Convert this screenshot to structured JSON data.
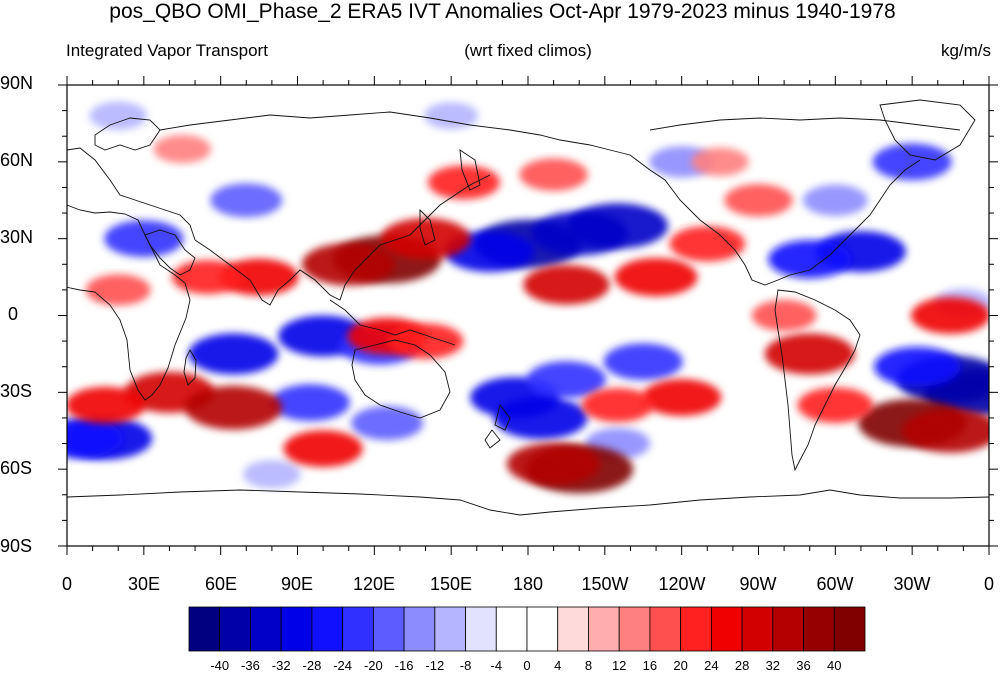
{
  "header": {
    "title": "pos_QBO OMI_Phase_2 ERA5 IVT Anomalies Oct-Apr 1979-2023 minus 1940-1978",
    "left": "Integrated Vapor Transport",
    "center": "(wrt fixed climos)",
    "right": "kg/m/s"
  },
  "axes": {
    "lat_labels": [
      "90N",
      "60N",
      "30N",
      "0",
      "30S",
      "60S",
      "90S"
    ],
    "lon_labels": [
      "0",
      "30E",
      "60E",
      "90E",
      "120E",
      "150E",
      "180",
      "150W",
      "120W",
      "90W",
      "60W",
      "30W",
      "0"
    ]
  },
  "colorbar": {
    "ticks": [
      "-40",
      "-36",
      "-32",
      "-28",
      "-24",
      "-20",
      "-16",
      "-12",
      "-8",
      "-4",
      "0",
      "4",
      "8",
      "12",
      "16",
      "20",
      "24",
      "28",
      "32",
      "36",
      "40"
    ],
    "colors": [
      "#000080",
      "#0000a8",
      "#0000c8",
      "#0000e8",
      "#1010ff",
      "#3030ff",
      "#5c5cff",
      "#8c8cff",
      "#b4b4ff",
      "#e2e2ff",
      "#ffffff",
      "#ffffff",
      "#ffdada",
      "#ffadad",
      "#ff8080",
      "#ff5050",
      "#ff2020",
      "#f00000",
      "#d20000",
      "#b40000",
      "#960000",
      "#800000"
    ]
  },
  "map": {
    "projection": "cylindrical-equidistant",
    "lon_range": [
      0,
      360
    ],
    "lat_range": [
      -90,
      90
    ],
    "anomalies": [
      {
        "lon": 180,
        "lat": 28,
        "v": -40
      },
      {
        "lon": 215,
        "lat": 35,
        "v": -36
      },
      {
        "lon": 200,
        "lat": 32,
        "v": -34
      },
      {
        "lon": 165,
        "lat": 25,
        "v": -30
      },
      {
        "lon": 65,
        "lat": -15,
        "v": -30
      },
      {
        "lon": 100,
        "lat": -8,
        "v": -30
      },
      {
        "lon": 122,
        "lat": -12,
        "v": -24
      },
      {
        "lon": 345,
        "lat": -25,
        "v": -40
      },
      {
        "lon": 355,
        "lat": -30,
        "v": -38
      },
      {
        "lon": 332,
        "lat": -20,
        "v": -28
      },
      {
        "lon": 15,
        "lat": -48,
        "v": -32
      },
      {
        "lon": 5,
        "lat": -48,
        "v": -28
      },
      {
        "lon": 95,
        "lat": -34,
        "v": -24
      },
      {
        "lon": 125,
        "lat": -42,
        "v": -20
      },
      {
        "lon": 175,
        "lat": -32,
        "v": -30
      },
      {
        "lon": 185,
        "lat": -40,
        "v": -32
      },
      {
        "lon": 195,
        "lat": -25,
        "v": -24
      },
      {
        "lon": 225,
        "lat": -18,
        "v": -24
      },
      {
        "lon": 30,
        "lat": 30,
        "v": -24
      },
      {
        "lon": 70,
        "lat": 45,
        "v": -20
      },
      {
        "lon": 310,
        "lat": 25,
        "v": -30
      },
      {
        "lon": 290,
        "lat": 22,
        "v": -26
      },
      {
        "lon": 330,
        "lat": 60,
        "v": -24
      },
      {
        "lon": 300,
        "lat": 45,
        "v": -16
      },
      {
        "lon": 240,
        "lat": 60,
        "v": -16
      },
      {
        "lon": 20,
        "lat": 78,
        "v": -12
      },
      {
        "lon": 150,
        "lat": 78,
        "v": -10
      },
      {
        "lon": 215,
        "lat": -50,
        "v": -16
      },
      {
        "lon": 80,
        "lat": -62,
        "v": -12
      },
      {
        "lon": 350,
        "lat": 5,
        "v": -12
      },
      {
        "lon": 125,
        "lat": 22,
        "v": 40
      },
      {
        "lon": 110,
        "lat": 20,
        "v": 32
      },
      {
        "lon": 140,
        "lat": 30,
        "v": 30
      },
      {
        "lon": 75,
        "lat": 15,
        "v": 24
      },
      {
        "lon": 55,
        "lat": 15,
        "v": 20
      },
      {
        "lon": 195,
        "lat": 12,
        "v": 28
      },
      {
        "lon": 230,
        "lat": 15,
        "v": 26
      },
      {
        "lon": 250,
        "lat": 28,
        "v": 22
      },
      {
        "lon": 200,
        "lat": -60,
        "v": 40
      },
      {
        "lon": 190,
        "lat": -58,
        "v": 32
      },
      {
        "lon": 330,
        "lat": -42,
        "v": 40
      },
      {
        "lon": 345,
        "lat": -45,
        "v": 34
      },
      {
        "lon": 290,
        "lat": -15,
        "v": 30
      },
      {
        "lon": 300,
        "lat": -35,
        "v": 22
      },
      {
        "lon": 40,
        "lat": -30,
        "v": 30
      },
      {
        "lon": 15,
        "lat": -35,
        "v": 24
      },
      {
        "lon": 65,
        "lat": -36,
        "v": 34
      },
      {
        "lon": 125,
        "lat": -8,
        "v": 24
      },
      {
        "lon": 140,
        "lat": -10,
        "v": 22
      },
      {
        "lon": 240,
        "lat": -32,
        "v": 24
      },
      {
        "lon": 215,
        "lat": -35,
        "v": 20
      },
      {
        "lon": 155,
        "lat": 52,
        "v": 20
      },
      {
        "lon": 190,
        "lat": 55,
        "v": 18
      },
      {
        "lon": 345,
        "lat": 0,
        "v": 24
      },
      {
        "lon": 20,
        "lat": 10,
        "v": 16
      },
      {
        "lon": 100,
        "lat": -52,
        "v": 24
      },
      {
        "lon": 280,
        "lat": 0,
        "v": 16
      },
      {
        "lon": 45,
        "lat": 65,
        "v": 12
      },
      {
        "lon": 270,
        "lat": 45,
        "v": 18
      },
      {
        "lon": 255,
        "lat": 60,
        "v": 12
      }
    ]
  }
}
